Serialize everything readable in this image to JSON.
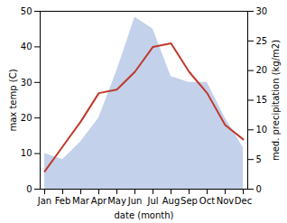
{
  "chart_data": {
    "type": "line",
    "xlabel": "date (month)",
    "ylabel": "max temp (C)",
    "y2label": "med. precipitation (kg/m2)",
    "categories": [
      "Jan",
      "Feb",
      "Mar",
      "Apr",
      "May",
      "Jun",
      "Jul",
      "Aug",
      "Sep",
      "Oct",
      "Nov",
      "Dec"
    ],
    "series": [
      {
        "type": "area",
        "axis": "y2",
        "color": "#b8c9e8",
        "values": [
          6,
          5,
          8,
          12,
          20,
          29,
          27,
          19,
          18,
          18,
          12,
          7
        ]
      },
      {
        "type": "line",
        "color": "#c0392b",
        "values": [
          5,
          12,
          19,
          27,
          28,
          33,
          40,
          41,
          33,
          27,
          18,
          14
        ]
      }
    ],
    "ylim": [
      0,
      50
    ],
    "yticks": [
      0,
      10,
      20,
      30,
      40,
      50
    ],
    "y2lim": [
      0,
      30
    ],
    "y2ticks": [
      0,
      5,
      10,
      15,
      20,
      25,
      30
    ]
  }
}
